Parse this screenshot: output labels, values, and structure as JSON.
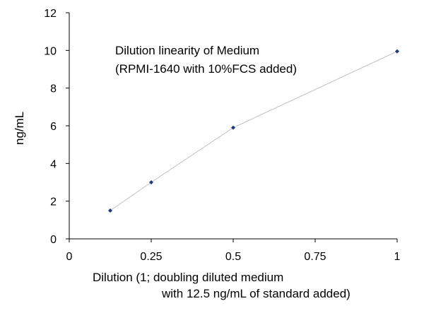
{
  "chart_data": {
    "type": "scatter",
    "title": [
      "Dilution linearity of Medium",
      "(RPMI-1640 with 10%FCS added)"
    ],
    "xlabel": [
      "Dilution (1; doubling diluted medium",
      "with 12.5 ng/mL of standard added)"
    ],
    "ylabel": "ng/mL",
    "xlim": [
      0,
      1
    ],
    "ylim": [
      0,
      12
    ],
    "xticks": [
      0,
      0.25,
      0.5,
      0.75,
      1
    ],
    "xtick_labels": [
      "0",
      "0.25",
      "0.5",
      "0.75",
      "1"
    ],
    "yticks": [
      0,
      2,
      4,
      6,
      8,
      10,
      12
    ],
    "ytick_labels": [
      "0",
      "2",
      "4",
      "6",
      "8",
      "10",
      "12"
    ],
    "grid": false,
    "connected": true,
    "marker_color": "#1f3a7a",
    "line_color": "#c0c0c0",
    "axis_color": "#000000",
    "series": [
      {
        "x": [
          0.125,
          0.25,
          0.5,
          1
        ],
        "y": [
          1.5,
          3.0,
          5.9,
          9.95
        ]
      }
    ]
  }
}
